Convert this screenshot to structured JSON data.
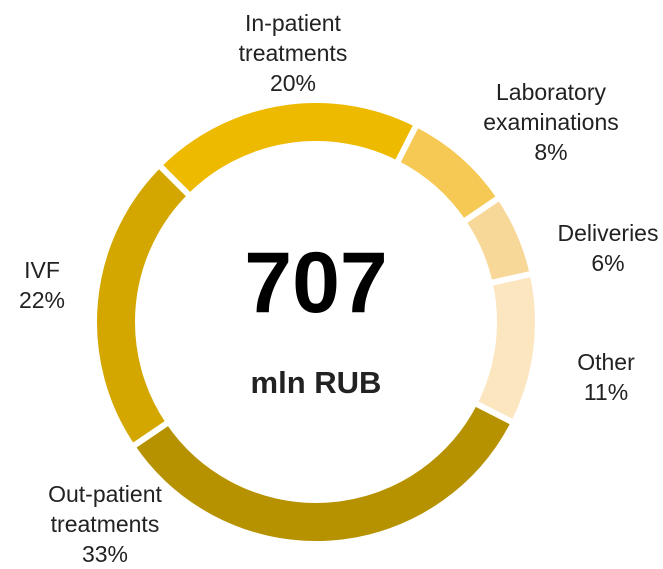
{
  "chart_data": {
    "type": "donut",
    "categories": [
      "In-patient treatments",
      "Laboratory examinations",
      "Deliveries",
      "Other",
      "Out-patient treatments",
      "IVF"
    ],
    "values": [
      20,
      8,
      6,
      11,
      33,
      22
    ],
    "value_labels": [
      "20%",
      "8%",
      "6%",
      "11%",
      "33%",
      "22%"
    ],
    "colors": [
      "#eeba00",
      "#f6c955",
      "#f8d898",
      "#fbe6c0",
      "#b79200",
      "#d4a700"
    ],
    "center_value": "707",
    "center_unit": "mln RUB"
  }
}
